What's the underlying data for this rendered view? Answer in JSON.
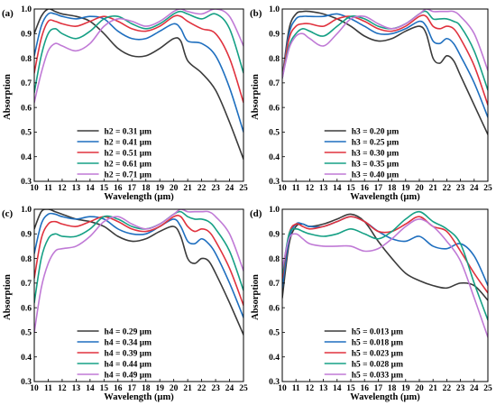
{
  "chart_data": [
    {
      "type": "line",
      "panel_label": "(a)",
      "xlabel": "Wavelength (μm)",
      "ylabel": "Absorption",
      "xlim": [
        10,
        25
      ],
      "ylim": [
        0.3,
        1.0
      ],
      "xticks": [
        10,
        11,
        12,
        13,
        14,
        15,
        16,
        17,
        18,
        19,
        20,
        21,
        22,
        23,
        24,
        25
      ],
      "yticks": [
        0.3,
        0.4,
        0.5,
        0.6,
        0.7,
        0.8,
        0.9,
        1.0
      ],
      "legend_position": "bottom-center",
      "grid": false,
      "series": [
        {
          "name": "h2 = 0.31 μm",
          "color": "#3b3b3b",
          "x": [
            10,
            10.5,
            11,
            11.5,
            12,
            13,
            14,
            15,
            16,
            17,
            18,
            19,
            20,
            20.5,
            21,
            22,
            23,
            24,
            25
          ],
          "y": [
            0.9,
            0.97,
            1.0,
            0.99,
            0.98,
            0.97,
            0.95,
            0.9,
            0.84,
            0.81,
            0.81,
            0.84,
            0.88,
            0.87,
            0.79,
            0.74,
            0.67,
            0.54,
            0.39
          ]
        },
        {
          "name": "h2 = 0.41 μm",
          "color": "#1f6fbf",
          "x": [
            10,
            10.5,
            11,
            11.5,
            12,
            13,
            14,
            15,
            16,
            17,
            18,
            19,
            20,
            20.5,
            21,
            22,
            23,
            24,
            25
          ],
          "y": [
            0.81,
            0.93,
            0.98,
            0.98,
            0.97,
            0.96,
            0.97,
            0.96,
            0.91,
            0.88,
            0.88,
            0.91,
            0.94,
            0.92,
            0.87,
            0.86,
            0.81,
            0.68,
            0.5
          ]
        },
        {
          "name": "h2 = 0.51 μm",
          "color": "#e0323e",
          "x": [
            10,
            10.5,
            11,
            11.5,
            12,
            13,
            14,
            15,
            16,
            17,
            18,
            19,
            20,
            20.5,
            21,
            22,
            23,
            24,
            25
          ],
          "y": [
            0.74,
            0.88,
            0.95,
            0.95,
            0.94,
            0.93,
            0.95,
            0.97,
            0.95,
            0.92,
            0.91,
            0.93,
            0.97,
            0.97,
            0.95,
            0.92,
            0.9,
            0.8,
            0.62
          ]
        },
        {
          "name": "h2 = 0.61 μm",
          "color": "#16a085",
          "x": [
            10,
            10.5,
            11,
            11.5,
            12,
            13,
            14,
            15,
            16,
            17,
            18,
            19,
            20,
            20.5,
            21,
            22,
            23,
            24,
            25
          ],
          "y": [
            0.66,
            0.81,
            0.9,
            0.92,
            0.9,
            0.88,
            0.91,
            0.96,
            0.97,
            0.94,
            0.92,
            0.94,
            0.98,
            0.99,
            0.98,
            0.96,
            0.98,
            0.92,
            0.74
          ]
        },
        {
          "name": "h2 = 0.71 μm",
          "color": "#c07ad6",
          "x": [
            10,
            10.5,
            11,
            11.5,
            12,
            13,
            14,
            15,
            16,
            17,
            18,
            19,
            20,
            20.5,
            21,
            22,
            23,
            24,
            25
          ],
          "y": [
            0.62,
            0.74,
            0.83,
            0.86,
            0.85,
            0.83,
            0.86,
            0.93,
            0.96,
            0.95,
            0.93,
            0.95,
            0.99,
            1.0,
            0.99,
            0.98,
            1.0,
            0.97,
            0.85
          ]
        }
      ]
    },
    {
      "type": "line",
      "panel_label": "(b)",
      "xlabel": "Wavelength (μm)",
      "ylabel": "Absorption",
      "xlim": [
        10,
        25
      ],
      "ylim": [
        0.3,
        1.0
      ],
      "xticks": [
        10,
        11,
        12,
        13,
        14,
        15,
        16,
        17,
        18,
        19,
        20,
        21,
        22,
        23,
        24,
        25
      ],
      "yticks": [
        0.3,
        0.4,
        0.5,
        0.6,
        0.7,
        0.8,
        0.9,
        1.0
      ],
      "legend_position": "bottom-center",
      "grid": false,
      "series": [
        {
          "name": "h3 = 0.20 μm",
          "color": "#3b3b3b",
          "x": [
            10,
            10.5,
            11,
            11.5,
            12,
            13,
            14,
            15,
            16,
            17,
            18,
            19,
            20,
            20.5,
            21,
            21.5,
            22,
            22.5,
            23,
            24,
            25
          ],
          "y": [
            0.72,
            0.92,
            0.98,
            0.99,
            0.99,
            0.98,
            0.96,
            0.93,
            0.89,
            0.87,
            0.88,
            0.91,
            0.93,
            0.9,
            0.8,
            0.78,
            0.81,
            0.79,
            0.73,
            0.61,
            0.49
          ]
        },
        {
          "name": "h3 = 0.25 μm",
          "color": "#1f6fbf",
          "x": [
            10,
            10.5,
            11,
            11.5,
            12,
            13,
            14,
            15,
            16,
            17,
            18,
            19,
            20,
            20.5,
            21,
            21.5,
            22,
            22.5,
            23,
            24,
            25
          ],
          "y": [
            0.72,
            0.9,
            0.96,
            0.97,
            0.97,
            0.97,
            0.98,
            0.96,
            0.93,
            0.9,
            0.9,
            0.92,
            0.95,
            0.93,
            0.87,
            0.86,
            0.88,
            0.86,
            0.81,
            0.7,
            0.56
          ]
        },
        {
          "name": "h3 = 0.30 μm",
          "color": "#e0323e",
          "x": [
            10,
            10.5,
            11,
            11.5,
            12,
            13,
            14,
            15,
            16,
            17,
            18,
            19,
            20,
            20.5,
            21,
            21.5,
            22,
            22.5,
            23,
            24,
            25
          ],
          "y": [
            0.72,
            0.88,
            0.93,
            0.94,
            0.94,
            0.93,
            0.96,
            0.97,
            0.95,
            0.92,
            0.91,
            0.93,
            0.97,
            0.97,
            0.93,
            0.92,
            0.93,
            0.92,
            0.88,
            0.77,
            0.61
          ]
        },
        {
          "name": "h3 = 0.35 μm",
          "color": "#16a085",
          "x": [
            10,
            10.5,
            11,
            11.5,
            12,
            13,
            14,
            15,
            16,
            17,
            18,
            19,
            20,
            20.5,
            21,
            21.5,
            22,
            22.5,
            23,
            24,
            25
          ],
          "y": [
            0.72,
            0.85,
            0.9,
            0.92,
            0.91,
            0.89,
            0.93,
            0.97,
            0.96,
            0.93,
            0.92,
            0.94,
            0.98,
            0.99,
            0.96,
            0.96,
            0.96,
            0.95,
            0.93,
            0.83,
            0.67
          ]
        },
        {
          "name": "h3 = 0.40 μm",
          "color": "#c07ad6",
          "x": [
            10,
            10.5,
            11,
            11.5,
            12,
            13,
            14,
            15,
            16,
            17,
            18,
            19,
            20,
            20.5,
            21,
            21.5,
            22,
            22.5,
            23,
            24,
            25
          ],
          "y": [
            0.72,
            0.84,
            0.89,
            0.9,
            0.88,
            0.85,
            0.9,
            0.96,
            0.97,
            0.94,
            0.92,
            0.94,
            0.98,
            1.0,
            0.99,
            0.99,
            0.99,
            0.99,
            0.97,
            0.9,
            0.75
          ]
        }
      ]
    },
    {
      "type": "line",
      "panel_label": "(c)",
      "xlabel": "Wavelength (μm)",
      "ylabel": "Absorption",
      "xlim": [
        10,
        25
      ],
      "ylim": [
        0.3,
        1.0
      ],
      "xticks": [
        10,
        11,
        12,
        13,
        14,
        15,
        16,
        17,
        18,
        19,
        20,
        21,
        22,
        23,
        24,
        25
      ],
      "yticks": [
        0.3,
        0.4,
        0.5,
        0.6,
        0.7,
        0.8,
        0.9,
        1.0
      ],
      "legend_position": "bottom-center",
      "grid": false,
      "series": [
        {
          "name": "h4 = 0.29 μm",
          "color": "#3b3b3b",
          "x": [
            10,
            10.5,
            11,
            11.5,
            12,
            13,
            14,
            15,
            16,
            17,
            18,
            19,
            20,
            20.5,
            21,
            21.5,
            22,
            22.5,
            23,
            24,
            25
          ],
          "y": [
            0.92,
            0.99,
            1.0,
            0.99,
            0.98,
            0.96,
            0.95,
            0.93,
            0.89,
            0.87,
            0.88,
            0.91,
            0.93,
            0.89,
            0.8,
            0.78,
            0.8,
            0.79,
            0.74,
            0.62,
            0.49
          ]
        },
        {
          "name": "h4 = 0.34 μm",
          "color": "#1f6fbf",
          "x": [
            10,
            10.5,
            11,
            11.5,
            12,
            13,
            14,
            15,
            16,
            17,
            18,
            19,
            20,
            20.5,
            21,
            21.5,
            22,
            22.5,
            23,
            24,
            25
          ],
          "y": [
            0.82,
            0.94,
            0.98,
            0.98,
            0.97,
            0.96,
            0.97,
            0.96,
            0.92,
            0.9,
            0.9,
            0.93,
            0.96,
            0.93,
            0.87,
            0.86,
            0.88,
            0.86,
            0.82,
            0.7,
            0.56
          ]
        },
        {
          "name": "h4 = 0.39 μm",
          "color": "#e0323e",
          "x": [
            10,
            10.5,
            11,
            11.5,
            12,
            13,
            14,
            15,
            16,
            17,
            18,
            19,
            20,
            20.5,
            21,
            21.5,
            22,
            22.5,
            23,
            24,
            25
          ],
          "y": [
            0.72,
            0.88,
            0.94,
            0.95,
            0.94,
            0.93,
            0.95,
            0.97,
            0.95,
            0.92,
            0.91,
            0.93,
            0.97,
            0.97,
            0.93,
            0.91,
            0.92,
            0.91,
            0.87,
            0.76,
            0.61
          ]
        },
        {
          "name": "h4 = 0.44 μm",
          "color": "#16a085",
          "x": [
            10,
            10.5,
            11,
            11.5,
            12,
            13,
            14,
            15,
            16,
            17,
            18,
            19,
            20,
            20.5,
            21,
            21.5,
            22,
            22.5,
            23,
            24,
            25
          ],
          "y": [
            0.62,
            0.8,
            0.88,
            0.9,
            0.89,
            0.89,
            0.92,
            0.97,
            0.96,
            0.93,
            0.92,
            0.94,
            0.98,
            0.99,
            0.97,
            0.96,
            0.96,
            0.95,
            0.92,
            0.83,
            0.67
          ]
        },
        {
          "name": "h4 = 0.49 μm",
          "color": "#c07ad6",
          "x": [
            10,
            10.5,
            11,
            11.5,
            12,
            13,
            14,
            15,
            16,
            17,
            18,
            19,
            20,
            20.5,
            21,
            21.5,
            22,
            22.5,
            23,
            24,
            25
          ],
          "y": [
            0.5,
            0.68,
            0.78,
            0.83,
            0.84,
            0.85,
            0.89,
            0.95,
            0.97,
            0.94,
            0.92,
            0.94,
            0.98,
            1.0,
            0.99,
            0.99,
            0.99,
            0.99,
            0.97,
            0.9,
            0.75
          ]
        }
      ]
    },
    {
      "type": "line",
      "panel_label": "(d)",
      "xlabel": "Wavelength (μm)",
      "ylabel": "Absorption",
      "xlim": [
        10,
        25
      ],
      "ylim": [
        0.3,
        1.0
      ],
      "xticks": [
        10,
        11,
        12,
        13,
        14,
        15,
        16,
        17,
        18,
        19,
        20,
        21,
        22,
        23,
        24,
        25
      ],
      "yticks": [
        0.3,
        0.4,
        0.5,
        0.6,
        0.7,
        0.8,
        0.9,
        1.0
      ],
      "legend_position": "bottom-center",
      "grid": false,
      "series": [
        {
          "name": "h5 = 0.013 μm",
          "color": "#3b3b3b",
          "x": [
            10,
            10.5,
            11,
            11.5,
            12,
            13,
            14,
            15,
            16,
            17,
            18,
            19,
            20,
            21,
            22,
            23,
            24,
            25
          ],
          "y": [
            0.64,
            0.86,
            0.93,
            0.94,
            0.93,
            0.94,
            0.96,
            0.98,
            0.95,
            0.87,
            0.8,
            0.74,
            0.71,
            0.69,
            0.68,
            0.7,
            0.69,
            0.63
          ]
        },
        {
          "name": "h5 = 0.018 μm",
          "color": "#1f6fbf",
          "x": [
            10,
            10.5,
            11,
            11.5,
            12,
            13,
            14,
            15,
            16,
            17,
            18,
            19,
            20,
            21,
            22,
            23,
            24,
            25
          ],
          "y": [
            0.68,
            0.88,
            0.94,
            0.94,
            0.93,
            0.93,
            0.95,
            0.97,
            0.95,
            0.91,
            0.88,
            0.87,
            0.89,
            0.85,
            0.84,
            0.86,
            0.81,
            0.69
          ]
        },
        {
          "name": "h5 = 0.023 μm",
          "color": "#e0323e",
          "x": [
            10,
            10.5,
            11,
            11.5,
            12,
            13,
            14,
            15,
            16,
            17,
            18,
            19,
            20,
            21,
            22,
            23,
            24,
            25
          ],
          "y": [
            0.72,
            0.9,
            0.94,
            0.93,
            0.92,
            0.93,
            0.95,
            0.97,
            0.95,
            0.91,
            0.91,
            0.94,
            0.97,
            0.93,
            0.91,
            0.83,
            0.74,
            0.66
          ]
        },
        {
          "name": "h5 = 0.028 μm",
          "color": "#16a085",
          "x": [
            10,
            10.5,
            11,
            11.5,
            12,
            13,
            14,
            15,
            16,
            17,
            18,
            19,
            20,
            21,
            22,
            23,
            24,
            25
          ],
          "y": [
            0.74,
            0.9,
            0.92,
            0.91,
            0.9,
            0.89,
            0.9,
            0.92,
            0.9,
            0.88,
            0.91,
            0.96,
            0.99,
            0.95,
            0.92,
            0.86,
            0.7,
            0.55
          ]
        },
        {
          "name": "h5 = 0.033 μm",
          "color": "#c07ad6",
          "x": [
            10,
            10.5,
            11,
            11.5,
            12,
            13,
            14,
            15,
            16,
            17,
            18,
            19,
            20,
            21,
            22,
            23,
            24,
            25
          ],
          "y": [
            0.76,
            0.88,
            0.9,
            0.88,
            0.86,
            0.85,
            0.85,
            0.85,
            0.83,
            0.84,
            0.88,
            0.93,
            0.96,
            0.93,
            0.87,
            0.79,
            0.64,
            0.48
          ]
        }
      ]
    }
  ]
}
